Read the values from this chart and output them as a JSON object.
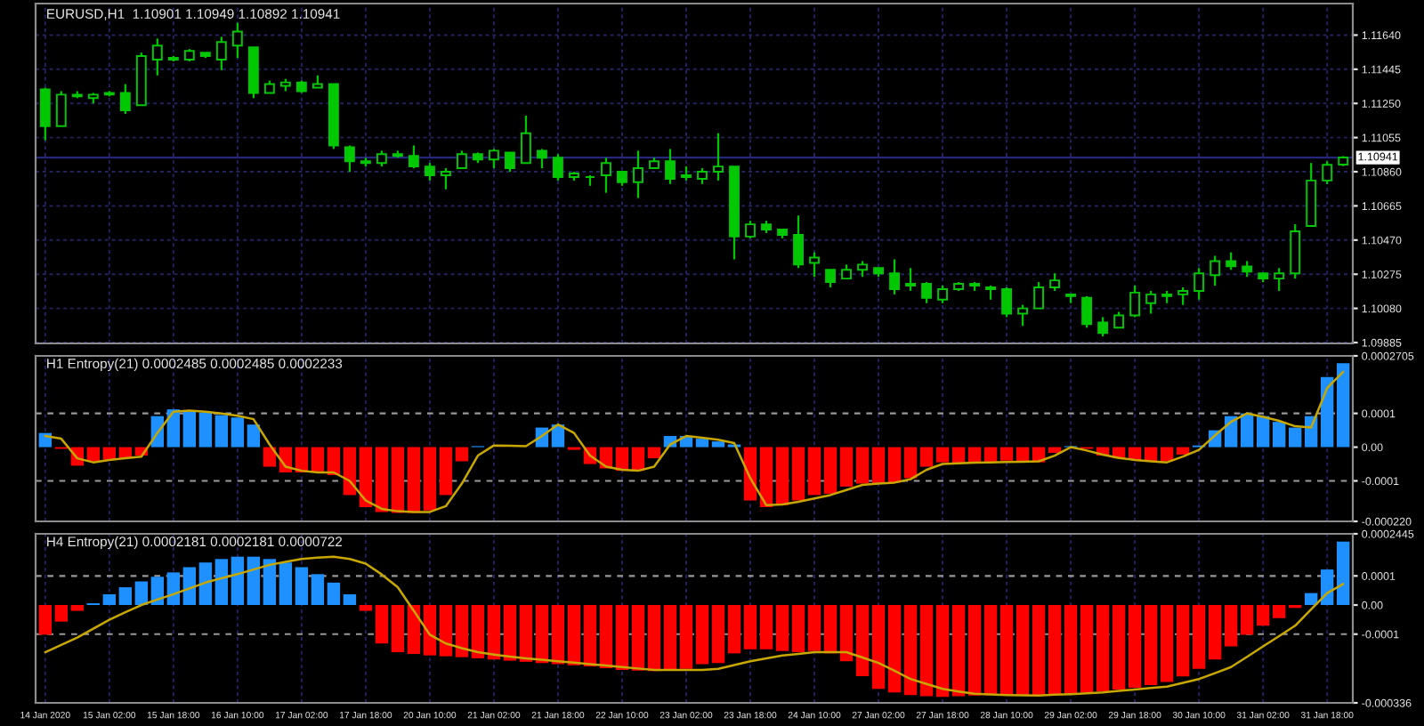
{
  "chart_data": [
    {
      "type": "candlestick",
      "title": "EURUSD,H1  1.10901 1.10949 1.10892 1.10941",
      "color": "#00c800",
      "grid": true,
      "tick_labels": "y",
      "categories": [
        null,
        null,
        null,
        null,
        null,
        null,
        null,
        null,
        null,
        null,
        null,
        null,
        null,
        null,
        null,
        null,
        null,
        null,
        null,
        null,
        null,
        null,
        null,
        null,
        null,
        null,
        null,
        null,
        null,
        null,
        null,
        null,
        null,
        null,
        null,
        null,
        null,
        null,
        null,
        null,
        null,
        null,
        null,
        null,
        null,
        null,
        null,
        null,
        null,
        null,
        null,
        null,
        null,
        null,
        null,
        null,
        null,
        null,
        null,
        null,
        null,
        null,
        null,
        null,
        null,
        null,
        null,
        null,
        null,
        null,
        null,
        null,
        null,
        null,
        null,
        null,
        null,
        null,
        null,
        null,
        null,
        null
      ],
      "ylim": [
        1.0988,
        1.1182
      ],
      "yticks": [
        {
          "value": 1.1164,
          "label": "1.11640"
        },
        {
          "value": 1.11445,
          "label": "1.11445"
        },
        {
          "value": 1.1125,
          "label": "1.11250"
        },
        {
          "value": 1.11055,
          "label": "1.11055"
        },
        {
          "value": 1.1086,
          "label": "1.10860"
        },
        {
          "value": 1.10665,
          "label": "1.10665"
        },
        {
          "value": 1.1047,
          "label": "1.10470"
        },
        {
          "value": 1.10275,
          "label": "1.10275"
        },
        {
          "value": 1.1008,
          "label": "1.10080"
        },
        {
          "value": 1.09885,
          "label": "1.09885"
        }
      ],
      "ref_lines": [
        {
          "axis": "y",
          "value": 1.10941,
          "label": "1.10941",
          "color": "#26267a",
          "line_style": "solid"
        }
      ],
      "ohlc": [
        [
          1.1133,
          1.1134,
          1.1104,
          1.1112
        ],
        [
          1.1112,
          1.1132,
          1.1112,
          1.113
        ],
        [
          1.113,
          1.1132,
          1.1128,
          1.1129
        ],
        [
          1.1128,
          1.1131,
          1.1125,
          1.113
        ],
        [
          1.113,
          1.1132,
          1.1129,
          1.1131
        ],
        [
          1.1131,
          1.1136,
          1.1119,
          1.1121
        ],
        [
          1.1124,
          1.1154,
          1.1124,
          1.1152
        ],
        [
          1.115,
          1.1162,
          1.1141,
          1.1158
        ],
        [
          1.1151,
          1.1152,
          1.1149,
          1.115
        ],
        [
          1.115,
          1.1156,
          1.1149,
          1.1155
        ],
        [
          1.1154,
          1.1154,
          1.1151,
          1.1152
        ],
        [
          1.115,
          1.1163,
          1.1144,
          1.116
        ],
        [
          1.1158,
          1.1171,
          1.1151,
          1.1166
        ],
        [
          1.1157,
          1.1157,
          1.1128,
          1.1131
        ],
        [
          1.1131,
          1.1138,
          1.1131,
          1.1136
        ],
        [
          1.1135,
          1.1139,
          1.1132,
          1.1137
        ],
        [
          1.1137,
          1.1138,
          1.1131,
          1.1132
        ],
        [
          1.1134,
          1.1141,
          1.1134,
          1.1136
        ],
        [
          1.1136,
          1.1136,
          1.1099,
          1.1101
        ],
        [
          1.11,
          1.1101,
          1.1086,
          1.1092
        ],
        [
          1.1092,
          1.1094,
          1.1089,
          1.1091
        ],
        [
          1.1091,
          1.1098,
          1.1089,
          1.1096
        ],
        [
          1.1096,
          1.1098,
          1.1094,
          1.1095
        ],
        [
          1.1095,
          1.1101,
          1.1088,
          1.1089
        ],
        [
          1.1089,
          1.1091,
          1.1081,
          1.1084
        ],
        [
          1.1084,
          1.1088,
          1.1076,
          1.1086
        ],
        [
          1.1088,
          1.1098,
          1.1088,
          1.1096
        ],
        [
          1.1096,
          1.1097,
          1.1091,
          1.1093
        ],
        [
          1.1093,
          1.1099,
          1.1088,
          1.1098
        ],
        [
          1.1097,
          1.1097,
          1.1086,
          1.1088
        ],
        [
          1.1091,
          1.1118,
          1.1091,
          1.1108
        ],
        [
          1.1098,
          1.1099,
          1.1088,
          1.1094
        ],
        [
          1.1094,
          1.1096,
          1.1081,
          1.1083
        ],
        [
          1.1083,
          1.1086,
          1.1081,
          1.1085
        ],
        [
          1.1083,
          1.1084,
          1.1078,
          1.1083
        ],
        [
          1.1084,
          1.1094,
          1.1074,
          1.1091
        ],
        [
          1.1086,
          1.1086,
          1.1078,
          1.108
        ],
        [
          1.108,
          1.1098,
          1.1071,
          1.1088
        ],
        [
          1.1088,
          1.1094,
          1.1088,
          1.1092
        ],
        [
          1.1092,
          1.1099,
          1.1079,
          1.1082
        ],
        [
          1.1084,
          1.1089,
          1.1081,
          1.1083
        ],
        [
          1.1082,
          1.1088,
          1.1079,
          1.1086
        ],
        [
          1.1086,
          1.1108,
          1.1081,
          1.1089
        ],
        [
          1.1089,
          1.1089,
          1.1036,
          1.1049
        ],
        [
          1.1049,
          1.1058,
          1.1048,
          1.1056
        ],
        [
          1.1056,
          1.1058,
          1.1051,
          1.1053
        ],
        [
          1.1053,
          1.1053,
          1.1048,
          1.105
        ],
        [
          1.105,
          1.1061,
          1.1031,
          1.1033
        ],
        [
          1.1034,
          1.104,
          1.1026,
          1.1037
        ],
        [
          1.103,
          1.103,
          1.102,
          1.1023
        ],
        [
          1.1025,
          1.1033,
          1.1025,
          1.103
        ],
        [
          1.103,
          1.1035,
          1.1026,
          1.1033
        ],
        [
          1.1031,
          1.1031,
          1.1026,
          1.1028
        ],
        [
          1.1028,
          1.1036,
          1.1016,
          1.1019
        ],
        [
          1.1021,
          1.1031,
          1.1018,
          1.1022
        ],
        [
          1.1022,
          1.1023,
          1.1011,
          1.1014
        ],
        [
          1.1013,
          1.1021,
          1.1011,
          1.1019
        ],
        [
          1.1019,
          1.1023,
          1.1018,
          1.1022
        ],
        [
          1.1022,
          1.1023,
          1.1018,
          1.1021
        ],
        [
          1.102,
          1.1021,
          1.1013,
          1.1019
        ],
        [
          1.1019,
          1.102,
          1.1003,
          1.1005
        ],
        [
          1.1005,
          1.101,
          1.0998,
          1.1008
        ],
        [
          1.1008,
          1.1023,
          1.1008,
          1.102
        ],
        [
          1.102,
          1.1028,
          1.1018,
          1.1024
        ],
        [
          1.1016,
          1.1016,
          1.1011,
          1.1015
        ],
        [
          1.1014,
          1.1015,
          1.0997,
          1.0999
        ],
        [
          1.1,
          1.1003,
          1.0992,
          1.0994
        ],
        [
          1.0997,
          1.1006,
          1.0997,
          1.1004
        ],
        [
          1.1004,
          1.1021,
          1.1003,
          1.1017
        ],
        [
          1.1011,
          1.1018,
          1.1005,
          1.1016
        ],
        [
          1.1015,
          1.1018,
          1.1011,
          1.1016
        ],
        [
          1.1016,
          1.102,
          1.101,
          1.1018
        ],
        [
          1.1018,
          1.1031,
          1.1013,
          1.1028
        ],
        [
          1.1027,
          1.1038,
          1.1021,
          1.1035
        ],
        [
          1.1035,
          1.104,
          1.103,
          1.1032
        ],
        [
          1.1032,
          1.1035,
          1.1026,
          1.1029
        ],
        [
          1.1028,
          1.1028,
          1.1023,
          1.1025
        ],
        [
          1.1025,
          1.1031,
          1.1018,
          1.1028
        ],
        [
          1.1028,
          1.1056,
          1.1025,
          1.1052
        ],
        [
          1.1055,
          1.1091,
          1.1055,
          1.1081
        ],
        [
          1.1081,
          1.1092,
          1.1079,
          1.109
        ],
        [
          1.10901,
          1.10949,
          1.10892,
          1.10941
        ]
      ]
    },
    {
      "type": "bar",
      "title": "H1 Entropy(21) 0.0002485 0.0002485 0.0002233",
      "grid": "x",
      "tick_labels": "y",
      "categories": [
        null,
        null,
        null,
        null,
        null,
        null,
        null,
        null,
        null,
        null,
        null,
        null,
        null,
        null,
        null,
        null,
        null,
        null,
        null,
        null,
        null,
        null,
        null,
        null,
        null,
        null,
        null,
        null,
        null,
        null,
        null,
        null,
        null,
        null,
        null,
        null,
        null,
        null,
        null,
        null,
        null,
        null,
        null,
        null,
        null,
        null,
        null,
        null,
        null,
        null,
        null,
        null,
        null,
        null,
        null,
        null,
        null,
        null,
        null,
        null,
        null,
        null,
        null,
        null,
        null,
        null,
        null,
        null,
        null,
        null,
        null,
        null,
        null,
        null,
        null,
        null,
        null,
        null,
        null,
        null,
        null,
        null
      ],
      "ylim": [
        -0.00022,
        0.0002705
      ],
      "yticks": [
        0.0002705,
        0.0001,
        {
          "value": 0,
          "label": "0.00"
        },
        -0.0001,
        {
          "value": -0.00022,
          "label": "-0.000220"
        }
      ],
      "ref_lines": [
        {
          "axis": "y",
          "value": 0.0001,
          "color": "#9a9a9a",
          "line_style": "dashed"
        },
        {
          "axis": "y",
          "value": -0.0001,
          "color": "#9a9a9a",
          "line_style": "dashed"
        }
      ],
      "series": [
        {
          "type": "bar",
          "values": [
            4.2e-05,
            -5e-06,
            -5.5e-05,
            -4.2e-05,
            -3.7e-05,
            -3.3e-05,
            -2.5e-05,
            9.2e-05,
            0.000112,
            0.000108,
            0.000103,
            9.5e-05,
            8.8e-05,
            6.7e-05,
            -5.8e-05,
            -7.5e-05,
            -7.5e-05,
            -7.2e-05,
            -8.3e-05,
            -0.000142,
            -0.000178,
            -0.000192,
            -0.000195,
            -0.000195,
            -0.000188,
            -0.000142,
            -4.2e-05,
            3e-06,
            null,
            null,
            null,
            5.8e-05,
            6.7e-05,
            -8e-06,
            -5e-05,
            -6.3e-05,
            -7e-05,
            -7e-05,
            -3.3e-05,
            3.3e-05,
            3.3e-05,
            2.5e-05,
            1.7e-05,
            8e-06,
            -0.000158,
            -0.000178,
            -0.000172,
            -0.000158,
            -0.000142,
            -0.000138,
            -0.000117,
            -0.000108,
            -0.000108,
            -0.000105,
            -9.2e-05,
            -5.8e-05,
            -4.5e-05,
            -4.7e-05,
            -4.7e-05,
            -4.5e-05,
            -4e-05,
            -4.2e-05,
            -4.5e-05,
            -1.7e-05,
            3e-06,
            -5e-06,
            -2.5e-05,
            -3.3e-05,
            -3.8e-05,
            -4.2e-05,
            -4.2e-05,
            -2.2e-05,
            5e-06,
            5e-05,
            9.2e-05,
            0.0001,
            9.2e-05,
            7.5e-05,
            5.8e-05,
            9.2e-05,
            0.000208,
            0.0002485
          ],
          "colors": [
            "#1e90ff",
            "#ff0000",
            "#ff0000",
            "#ff0000",
            "#ff0000",
            "#ff0000",
            "#ff0000",
            "#1e90ff",
            "#1e90ff",
            "#1e90ff",
            "#1e90ff",
            "#1e90ff",
            "#1e90ff",
            "#1e90ff",
            "#ff0000",
            "#ff0000",
            "#ff0000",
            "#ff0000",
            "#ff0000",
            "#ff0000",
            "#ff0000",
            "#ff0000",
            "#ff0000",
            "#ff0000",
            "#ff0000",
            "#ff0000",
            "#ff0000",
            "#1e90ff",
            "#1e90ff",
            "#1e90ff",
            "#1e90ff",
            "#1e90ff",
            "#1e90ff",
            "#ff0000",
            "#ff0000",
            "#ff0000",
            "#ff0000",
            "#ff0000",
            "#ff0000",
            "#1e90ff",
            "#1e90ff",
            "#1e90ff",
            "#1e90ff",
            "#1e90ff",
            "#ff0000",
            "#ff0000",
            "#ff0000",
            "#ff0000",
            "#ff0000",
            "#ff0000",
            "#ff0000",
            "#ff0000",
            "#ff0000",
            "#ff0000",
            "#ff0000",
            "#ff0000",
            "#ff0000",
            "#ff0000",
            "#ff0000",
            "#ff0000",
            "#ff0000",
            "#ff0000",
            "#ff0000",
            "#ff0000",
            "#1e90ff",
            "#ff0000",
            "#ff0000",
            "#ff0000",
            "#ff0000",
            "#ff0000",
            "#ff0000",
            "#ff0000",
            "#1e90ff",
            "#1e90ff",
            "#1e90ff",
            "#1e90ff",
            "#1e90ff",
            "#1e90ff",
            "#1e90ff",
            "#1e90ff",
            "#1e90ff",
            "#1e90ff"
          ]
        },
        {
          "type": "line",
          "color": "#c8a800",
          "values": [
            3.3e-05,
            2.5e-05,
            -3.3e-05,
            -4.5e-05,
            -3.8e-05,
            -3.3e-05,
            -2.8e-05,
            4.2e-05,
            0.000105,
            0.000108,
            0.000105,
            0.0001,
            9.3e-05,
            8.3e-05,
            8e-06,
            -5.8e-05,
            -7e-05,
            -7.5e-05,
            -7.5e-05,
            -0.0001,
            -0.000158,
            -0.000183,
            -0.00019,
            -0.000192,
            -0.000192,
            -0.000175,
            -0.000108,
            -2.5e-05,
            5e-06,
            4e-06,
            3e-06,
            3.3e-05,
            6.7e-05,
            4.2e-05,
            -2.5e-05,
            -5.8e-05,
            -6.7e-05,
            -7e-05,
            -5.8e-05,
            8e-06,
            3.3e-05,
            2.8e-05,
            2.2e-05,
            1.2e-05,
            -9.2e-05,
            -0.000172,
            -0.00017,
            -0.000162,
            -0.000152,
            -0.000142,
            -0.000127,
            -0.000112,
            -0.000108,
            -0.000105,
            -9.5e-05,
            -6.7e-05,
            -5e-05,
            -4.8e-05,
            -4.6e-05,
            -4.5e-05,
            -4.4e-05,
            -4.3e-05,
            -4.2e-05,
            -2.5e-05,
            0.0,
            -1e-05,
            -2.2e-05,
            -3.2e-05,
            -3.8e-05,
            -4.2e-05,
            -4.5e-05,
            -2.8e-05,
            -8e-06,
            3.5e-05,
            7.5e-05,
            0.0001,
            9e-05,
            7.8e-05,
            6.2e-05,
            5.8e-05,
            0.000175,
            0.0002233
          ]
        }
      ]
    },
    {
      "type": "bar",
      "title": "H4 Entropy(21) 0.0002181 0.0002181 0.0000722",
      "grid": "x",
      "categories": [
        "14 Jan 2020",
        null,
        null,
        null,
        "15 Jan 02:00",
        null,
        null,
        null,
        "15 Jan 18:00",
        null,
        null,
        null,
        "16 Jan 10:00",
        null,
        null,
        null,
        "17 Jan 02:00",
        null,
        null,
        null,
        "17 Jan 18:00",
        null,
        null,
        null,
        "20 Jan 10:00",
        null,
        null,
        null,
        "21 Jan 02:00",
        null,
        null,
        null,
        "21 Jan 18:00",
        null,
        null,
        null,
        "22 Jan 10:00",
        null,
        null,
        null,
        "23 Jan 02:00",
        null,
        null,
        null,
        "23 Jan 18:00",
        null,
        null,
        null,
        "24 Jan 10:00",
        null,
        null,
        null,
        "27 Jan 02:00",
        null,
        null,
        null,
        "27 Jan 18:00",
        null,
        null,
        null,
        "28 Jan 10:00",
        null,
        null,
        null,
        "29 Jan 02:00",
        null,
        null,
        null,
        "29 Jan 18:00",
        null,
        null,
        null,
        "30 Jan 10:00",
        null,
        null,
        null,
        "31 Jan 02:00",
        null,
        null,
        null,
        "31 Jan 18:00",
        null
      ],
      "ylim": [
        -0.000336,
        0.0002445
      ],
      "yticks": [
        0.0002445,
        0.0001,
        {
          "value": 0,
          "label": "0.00"
        },
        -0.0001,
        -0.000336
      ],
      "ref_lines": [
        {
          "axis": "y",
          "value": 0.0001,
          "color": "#9a9a9a",
          "line_style": "dashed"
        },
        {
          "axis": "y",
          "value": -0.0001,
          "color": "#9a9a9a",
          "line_style": "dashed"
        }
      ],
      "series": [
        {
          "type": "bar",
          "values": [
            -0.000102,
            -5.7e-05,
            -2e-05,
            6e-06,
            3.7e-05,
            6.1e-05,
            8.1e-05,
            9.7e-05,
            0.000112,
            0.00013,
            0.000146,
            0.000158,
            0.000166,
            0.000166,
            0.000158,
            0.000146,
            0.00013,
            0.000106,
            7.7e-05,
            3.7e-05,
            -2e-05,
            -0.000132,
            -0.000162,
            -0.000168,
            -0.000173,
            -0.000176,
            -0.000179,
            -0.000183,
            -0.000187,
            -0.000191,
            -0.000195,
            -0.000199,
            -0.000203,
            -0.000207,
            -0.000211,
            -0.000217,
            -0.000223,
            -0.000225,
            -0.000227,
            -0.000225,
            -0.000219,
            -0.000203,
            -0.000199,
            -0.000166,
            -0.000152,
            -0.000152,
            -0.000158,
            -0.000162,
            -0.000158,
            -0.000166,
            -0.000193,
            -0.000244,
            -0.000288,
            -0.0003,
            -0.000309,
            -0.000313,
            -0.000315,
            -0.000313,
            -0.000311,
            -0.00031,
            -0.000309,
            -0.000309,
            -0.000309,
            -0.000307,
            -0.000305,
            -0.000301,
            -0.000296,
            -0.00029,
            -0.000284,
            -0.000275,
            -0.000264,
            -0.000245,
            -0.000219,
            -0.000187,
            -0.000142,
            -0.000102,
            -7.1e-05,
            -4.5e-05,
            -1e-05,
            4.1e-05,
            0.000122,
            0.0002181
          ],
          "colors": [
            "#ff0000",
            "#ff0000",
            "#ff0000",
            "#1e90ff",
            "#1e90ff",
            "#1e90ff",
            "#1e90ff",
            "#1e90ff",
            "#1e90ff",
            "#1e90ff",
            "#1e90ff",
            "#1e90ff",
            "#1e90ff",
            "#1e90ff",
            "#1e90ff",
            "#1e90ff",
            "#1e90ff",
            "#1e90ff",
            "#1e90ff",
            "#1e90ff",
            "#ff0000",
            "#ff0000",
            "#ff0000",
            "#ff0000",
            "#ff0000",
            "#ff0000",
            "#ff0000",
            "#ff0000",
            "#ff0000",
            "#ff0000",
            "#ff0000",
            "#ff0000",
            "#ff0000",
            "#ff0000",
            "#ff0000",
            "#ff0000",
            "#ff0000",
            "#ff0000",
            "#ff0000",
            "#ff0000",
            "#ff0000",
            "#ff0000",
            "#ff0000",
            "#ff0000",
            "#ff0000",
            "#ff0000",
            "#ff0000",
            "#ff0000",
            "#ff0000",
            "#ff0000",
            "#ff0000",
            "#ff0000",
            "#ff0000",
            "#ff0000",
            "#ff0000",
            "#ff0000",
            "#ff0000",
            "#ff0000",
            "#ff0000",
            "#ff0000",
            "#ff0000",
            "#ff0000",
            "#ff0000",
            "#ff0000",
            "#ff0000",
            "#ff0000",
            "#ff0000",
            "#ff0000",
            "#ff0000",
            "#ff0000",
            "#ff0000",
            "#ff0000",
            "#ff0000",
            "#ff0000",
            "#ff0000",
            "#ff0000",
            "#ff0000",
            "#ff0000",
            "#ff0000",
            "#1e90ff",
            "#1e90ff",
            "#1e90ff"
          ]
        },
        {
          "type": "line",
          "color": "#c8a800",
          "values": [
            -0.000162,
            -0.000137,
            -0.000112,
            -8.1e-05,
            -5.1e-05,
            -2.5e-05,
            0.0,
            1.9e-05,
            3.7e-05,
            5.7e-05,
            7.7e-05,
            9.2e-05,
            0.000106,
            0.000122,
            0.000138,
            0.000148,
            0.000158,
            0.000163,
            0.000166,
            0.000158,
            0.000142,
            0.000105,
            6.1e-05,
            -2e-05,
            -0.000102,
            -0.000132,
            -0.000148,
            -0.000162,
            -0.00017,
            -0.000177,
            -0.000183,
            -0.000188,
            -0.000193,
            -0.000198,
            -0.000203,
            -0.000208,
            -0.000213,
            -0.000218,
            -0.000223,
            -0.000223,
            -0.000223,
            -0.000223,
            -0.000219,
            -0.000206,
            -0.000193,
            -0.000183,
            -0.000173,
            -0.000168,
            -0.000162,
            -0.000162,
            -0.000162,
            -0.00018,
            -0.000199,
            -0.000226,
            -0.000254,
            -0.000271,
            -0.000288,
            -0.000297,
            -0.000305,
            -0.000307,
            -0.000309,
            -0.00031,
            -0.000311,
            -0.000308,
            -0.000306,
            -0.000303,
            -0.0003,
            -0.000295,
            -0.00029,
            -0.000285,
            -0.00028,
            -0.000267,
            -0.000254,
            -0.000234,
            -0.000213,
            -0.000178,
            -0.000142,
            -0.000107,
            -7.1e-05,
            -1.5e-05,
            4.1e-05,
            7.22e-05
          ]
        }
      ]
    }
  ]
}
